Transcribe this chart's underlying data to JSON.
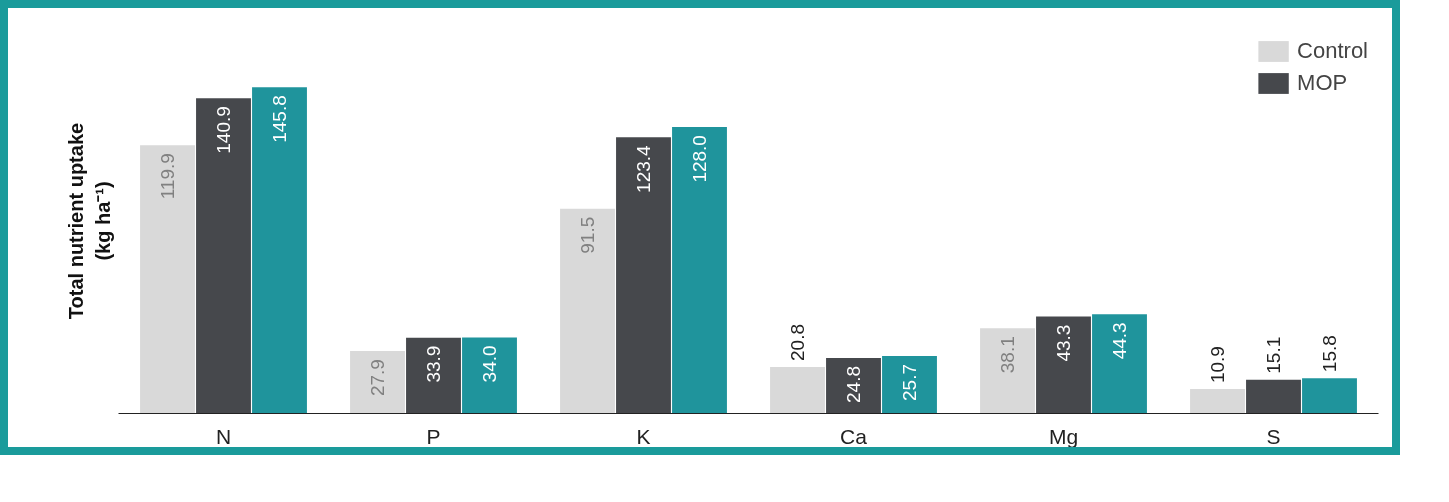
{
  "chart_data": {
    "type": "bar",
    "ylabel": "Total nutrient uptake\n(kg ha⁻¹)",
    "categories": [
      "N",
      "P",
      "K",
      "Ca",
      "Mg",
      "S"
    ],
    "series": [
      {
        "name": "Control",
        "color": "#d9d9d9",
        "values": [
          119.9,
          27.9,
          91.5,
          20.8,
          38.1,
          10.9
        ],
        "value_labels": [
          "119.9",
          "27.9",
          "91.5",
          "20.8",
          "38.1",
          "10.9"
        ]
      },
      {
        "name": "MOP",
        "color": "#46484c",
        "values": [
          140.9,
          33.9,
          123.4,
          24.8,
          43.3,
          15.1
        ],
        "value_labels": [
          "140.9",
          "33.9",
          "123.4",
          "24.8",
          "43.3",
          "15.1"
        ]
      },
      {
        "color": "#1f949c",
        "values": [
          145.8,
          34.0,
          128.0,
          25.7,
          44.3,
          15.8
        ],
        "value_labels": [
          "145.8",
          "34.0",
          "128.0",
          "25.7",
          "44.3",
          "15.8"
        ]
      }
    ],
    "legend": "top right",
    "grid": false
  }
}
